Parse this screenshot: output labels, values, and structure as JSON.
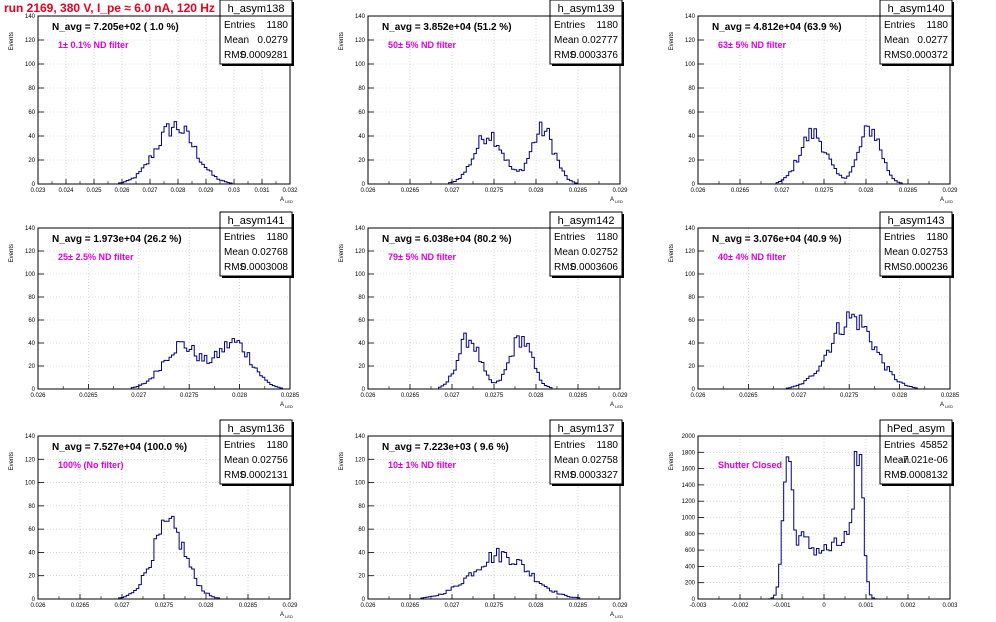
{
  "page": {
    "title": "run 2169,   380 V, I_pe ≈ 6.0 nA, 120 Hz"
  },
  "chart_data": [
    {
      "type": "bar",
      "name": "h_asym138",
      "navg": "N_avg = 7.205e+02 ( 1.0 %)",
      "note": "1± 0.1% ND filter",
      "stats": {
        "entries": "1180",
        "mean": "0.0279",
        "rms": "0.0009281"
      },
      "xlim": [
        0.023,
        0.032
      ],
      "xticks": [
        "0.023",
        "0.024",
        "0.025",
        "0.026",
        "0.027",
        "0.028",
        "0.029",
        "0.03",
        "0.031",
        "0.032"
      ],
      "ylim": [
        0,
        140
      ],
      "yticks": [
        "0",
        "20",
        "40",
        "60",
        "80",
        "100",
        "120",
        "140"
      ],
      "ylabel": "Events",
      "xlabel": "A_LED",
      "peaks": [
        [
          0.0279,
          0.0007,
          48
        ]
      ]
    },
    {
      "type": "bar",
      "name": "h_asym139",
      "navg": "N_avg = 3.852e+04 (51.2 %)",
      "note": "50± 5% ND filter",
      "stats": {
        "entries": "1180",
        "mean": "0.02777",
        "rms": "0.0003376"
      },
      "xlim": [
        0.026,
        0.029
      ],
      "xticks": [
        "0.026",
        "0.0265",
        "0.027",
        "0.0275",
        "0.028",
        "0.0285",
        "0.029"
      ],
      "ylim": [
        0,
        140
      ],
      "yticks": [
        "0",
        "20",
        "40",
        "60",
        "80",
        "100",
        "120",
        "140"
      ],
      "ylabel": "Events",
      "xlabel": "A_LED",
      "peaks": [
        [
          0.02744,
          0.00017,
          42
        ],
        [
          0.02808,
          0.00014,
          45
        ]
      ]
    },
    {
      "type": "bar",
      "name": "h_asym140",
      "navg": "N_avg = 4.812e+04 (63.9 %)",
      "note": "63± 5% ND filter",
      "stats": {
        "entries": "1180",
        "mean": "0.0277",
        "rms": "0.000372"
      },
      "xlim": [
        0.026,
        0.029
      ],
      "xticks": [
        "0.026",
        "0.0265",
        "0.027",
        "0.0275",
        "0.028",
        "0.0285",
        "0.029"
      ],
      "ylim": [
        0,
        140
      ],
      "yticks": [
        "0",
        "20",
        "40",
        "60",
        "80",
        "100",
        "120",
        "140"
      ],
      "ylabel": "Events",
      "xlabel": "A_LED",
      "peaks": [
        [
          0.02737,
          0.00016,
          42
        ],
        [
          0.02805,
          0.00013,
          46
        ]
      ]
    },
    {
      "type": "bar",
      "name": "h_asym141",
      "navg": "N_avg = 1.973e+04 (26.2 %)",
      "note": "25± 2.5% ND filter",
      "stats": {
        "entries": "1180",
        "mean": "0.02768",
        "rms": "0.0003008"
      },
      "xlim": [
        0.026,
        0.0285
      ],
      "xticks": [
        "0.026",
        "0.0265",
        "0.027",
        "0.0275",
        "0.028",
        "0.0285"
      ],
      "ylim": [
        0,
        140
      ],
      "yticks": [
        "0",
        "20",
        "40",
        "60",
        "80",
        "100",
        "120",
        "140"
      ],
      "ylabel": "Events",
      "xlabel": "A_LED",
      "peaks": [
        [
          0.02742,
          0.00018,
          38
        ],
        [
          0.02795,
          0.00017,
          40
        ]
      ]
    },
    {
      "type": "bar",
      "name": "h_asym142",
      "navg": "N_avg = 6.038e+04 (80.2 %)",
      "note": "79± 5% ND filter",
      "stats": {
        "entries": "1180",
        "mean": "0.02752",
        "rms": "0.0003606"
      },
      "xlim": [
        0.026,
        0.029
      ],
      "xticks": [
        "0.026",
        "0.0265",
        "0.027",
        "0.0275",
        "0.028",
        "0.0285",
        "0.029"
      ],
      "ylim": [
        0,
        140
      ],
      "yticks": [
        "0",
        "20",
        "40",
        "60",
        "80",
        "100",
        "120",
        "140"
      ],
      "ylabel": "Events",
      "xlabel": "A_LED",
      "peaks": [
        [
          0.0272,
          0.00013,
          44
        ],
        [
          0.02782,
          0.00013,
          44
        ]
      ]
    },
    {
      "type": "bar",
      "name": "h_asym143",
      "navg": "N_avg = 3.076e+04 (40.9 %)",
      "note": "40± 4% ND filter",
      "stats": {
        "entries": "1180",
        "mean": "0.02753",
        "rms": "0.000236"
      },
      "xlim": [
        0.026,
        0.0285
      ],
      "xticks": [
        "0.026",
        "0.0265",
        "0.027",
        "0.0275",
        "0.028",
        "0.0285"
      ],
      "ylim": [
        0,
        140
      ],
      "yticks": [
        "0",
        "20",
        "40",
        "60",
        "80",
        "100",
        "120",
        "140"
      ],
      "ylabel": "Events",
      "xlabel": "A_LED",
      "peaks": [
        [
          0.02753,
          0.00022,
          62
        ]
      ]
    },
    {
      "type": "bar",
      "name": "h_asym136",
      "navg": "N_avg = 7.527e+04 (100.0 %)",
      "note": "100% (No filter)",
      "stats": {
        "entries": "1180",
        "mean": "0.02756",
        "rms": "0.0002131"
      },
      "xlim": [
        0.026,
        0.029
      ],
      "xticks": [
        "0.026",
        "0.0265",
        "0.027",
        "0.0275",
        "0.028",
        "0.0285",
        "0.029"
      ],
      "ylim": [
        0,
        140
      ],
      "yticks": [
        "0",
        "20",
        "40",
        "60",
        "80",
        "100",
        "120",
        "140"
      ],
      "ylabel": "Events",
      "xlabel": "A_LED",
      "peaks": [
        [
          0.02756,
          0.0002,
          62
        ]
      ]
    },
    {
      "type": "bar",
      "name": "h_asym137",
      "navg": "N_avg = 7.223e+03 ( 9.6 %)",
      "note": "10± 1% ND filter",
      "stats": {
        "entries": "1180",
        "mean": "0.02758",
        "rms": "0.0003327"
      },
      "xlim": [
        0.026,
        0.029
      ],
      "xticks": [
        "0.026",
        "0.0265",
        "0.027",
        "0.0275",
        "0.028",
        "0.0285",
        "0.029"
      ],
      "ylim": [
        0,
        140
      ],
      "yticks": [
        "0",
        "20",
        "40",
        "60",
        "80",
        "100",
        "120",
        "140"
      ],
      "ylabel": "Events",
      "xlabel": "A_LED",
      "peaks": [
        [
          0.02758,
          0.00034,
          38
        ]
      ]
    },
    {
      "type": "bar",
      "name": "hPed_asym",
      "navg": "",
      "note": "Shutter Closed",
      "stats": {
        "entries": "45852",
        "mean": "-7.021e-06",
        "rms": "0.0008132"
      },
      "xlim": [
        -0.003,
        0.003
      ],
      "xticks": [
        "-0.003",
        "-0.002",
        "-0.001",
        "0",
        "0.001",
        "0.002",
        "0.003"
      ],
      "ylim": [
        0,
        2000
      ],
      "yticks": [
        "0",
        "200",
        "400",
        "600",
        "800",
        "1000",
        "1200",
        "1400",
        "1600",
        "1800",
        "2000"
      ],
      "ylabel": "Events",
      "xlabel": "",
      "peaks": [
        [
          -0.00085,
          0.00012,
          1800
        ],
        [
          0.00082,
          0.00011,
          1900
        ]
      ],
      "baseline": 600
    }
  ]
}
